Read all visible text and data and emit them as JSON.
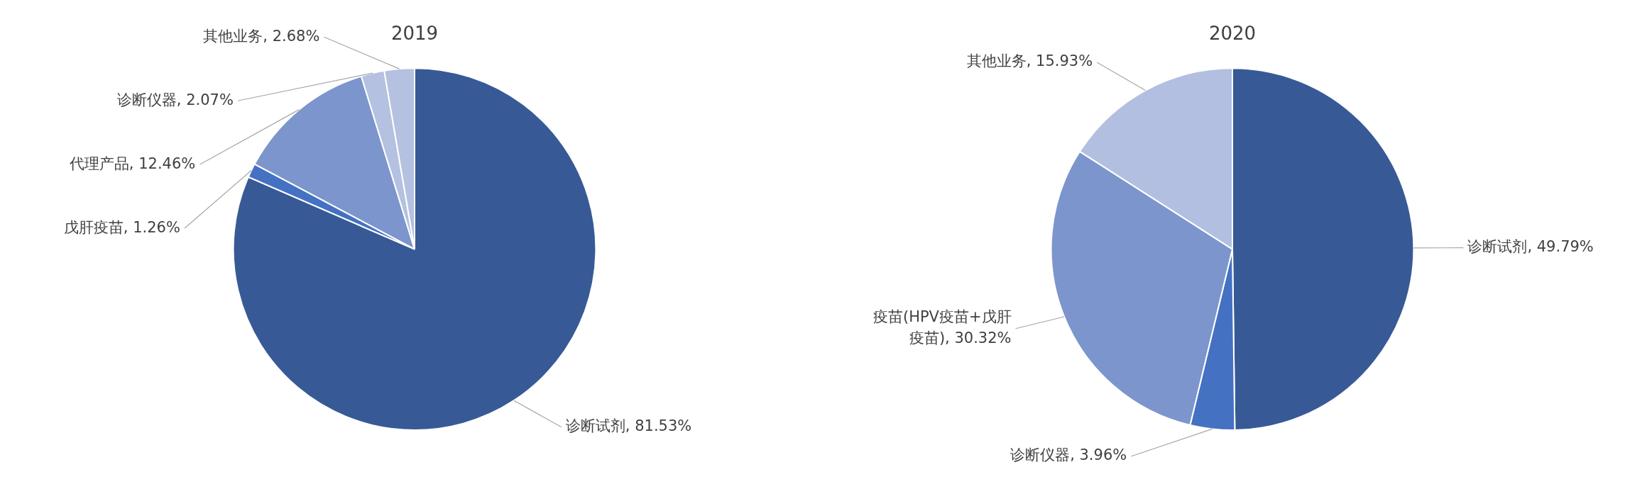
{
  "chart_data": [
    {
      "type": "pie",
      "title": "2019",
      "categories": [
        "诊断试剂",
        "戊肝疫苗",
        "代理产品",
        "诊断仪器",
        "其他业务"
      ],
      "values": [
        81.53,
        1.26,
        12.46,
        2.07,
        2.68
      ],
      "value_labels": [
        "81.53%",
        "1.26%",
        "12.46%",
        "2.07%",
        "2.68%"
      ],
      "colors": [
        "#375a96",
        "#4571c3",
        "#7c95cc",
        "#b4c1e0",
        "#b4c1e0"
      ],
      "legend": false
    },
    {
      "type": "pie",
      "title": "2020",
      "categories": [
        "诊断试剂",
        "诊断仪器",
        "疫苗(HPV疫苗+戊肝疫苗)",
        "其他业务"
      ],
      "values": [
        49.79,
        3.96,
        30.32,
        15.93
      ],
      "value_labels": [
        "49.79%",
        "3.96%",
        "30.32%",
        "15.93%"
      ],
      "colors": [
        "#375a96",
        "#4571c3",
        "#7c95cc",
        "#b2bfe0"
      ],
      "legend": false
    }
  ]
}
